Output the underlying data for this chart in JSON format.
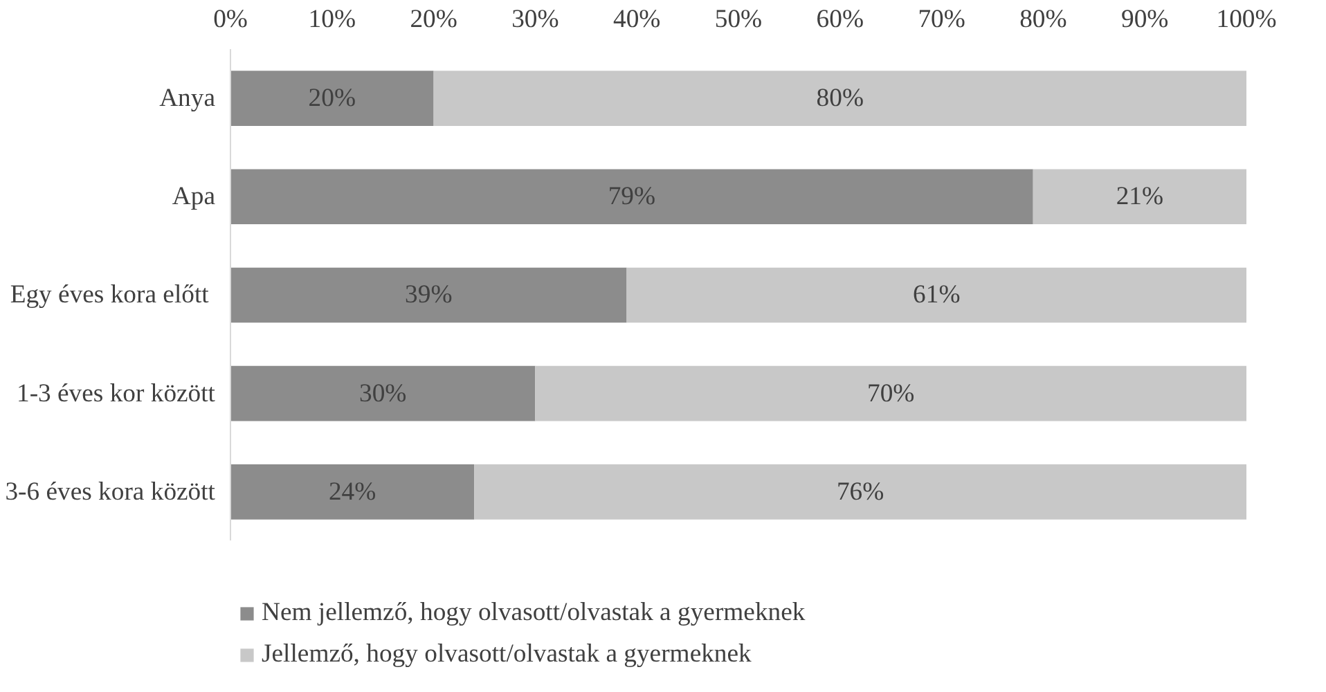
{
  "chart_data": {
    "type": "bar",
    "orientation": "horizontal",
    "stacked": true,
    "legend": "bottom",
    "grid": false,
    "categories": [
      "Anya",
      "Apa",
      "Egy éves kora előtt ",
      "1-3 éves kor között",
      "3-6 éves kora között"
    ],
    "series": [
      {
        "name": "Nem jellemző, hogy olvasott/olvastak a gyermeknek",
        "color": "#8c8c8c",
        "values": [
          20,
          79,
          39,
          30,
          24
        ],
        "value_labels": [
          "20%",
          "79%",
          "39%",
          "30%",
          "24%"
        ]
      },
      {
        "name": "Jellemző, hogy olvasott/olvastak a gyermeknek",
        "color": "#c8c8c8",
        "values": [
          80,
          21,
          61,
          70,
          76
        ],
        "value_labels": [
          "80%",
          "21%",
          "61%",
          "70%",
          "76%"
        ]
      }
    ],
    "xlim": [
      0,
      100
    ],
    "xticks": [
      {
        "value": 0,
        "label": "0%"
      },
      {
        "value": 10,
        "label": "10%"
      },
      {
        "value": 20,
        "label": "20%"
      },
      {
        "value": 30,
        "label": "30%"
      },
      {
        "value": 40,
        "label": "40%"
      },
      {
        "value": 50,
        "label": "50%"
      },
      {
        "value": 60,
        "label": "60%"
      },
      {
        "value": 70,
        "label": "70%"
      },
      {
        "value": 80,
        "label": "80%"
      },
      {
        "value": 90,
        "label": "90%"
      },
      {
        "value": 100,
        "label": "100%"
      }
    ]
  }
}
